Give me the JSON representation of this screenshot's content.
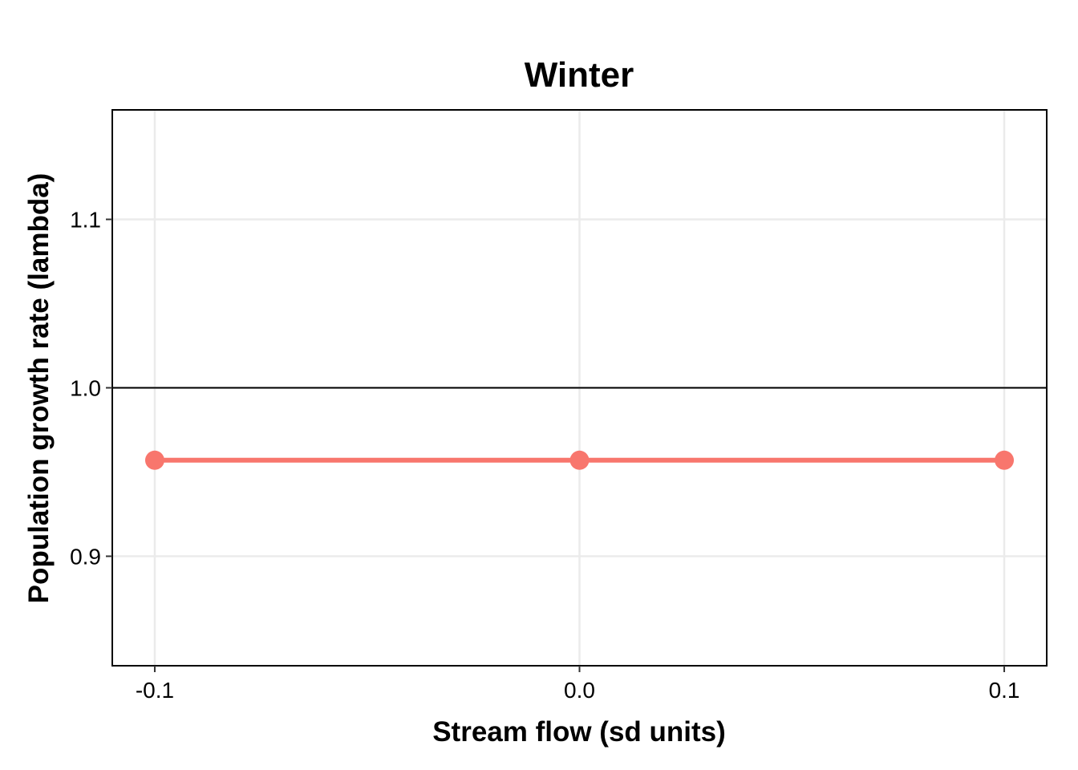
{
  "chart_data": {
    "type": "line",
    "title": "Winter",
    "xlabel": "Stream flow (sd units)",
    "ylabel": "Population growth rate (lambda)",
    "x": [
      -0.1,
      0.0,
      0.1
    ],
    "x_tick_values": [
      -0.1,
      0.0,
      0.1
    ],
    "x_tick_labels": [
      "-0.1",
      "0.0",
      "0.1"
    ],
    "y_tick_values": [
      0.9,
      1.0,
      1.1
    ],
    "y_tick_labels": [
      "0.9",
      "1.0",
      "1.1"
    ],
    "xlim": [
      -0.11,
      0.11
    ],
    "ylim": [
      0.835,
      1.165
    ],
    "reference_line": {
      "y": 1.0,
      "color": "#000000"
    },
    "series": [
      {
        "name": "Winter",
        "color": "#F8766D",
        "values": [
          0.957,
          0.957,
          0.957
        ]
      }
    ],
    "grid": true,
    "grid_color": "#EBEBEB",
    "legend": "none"
  }
}
